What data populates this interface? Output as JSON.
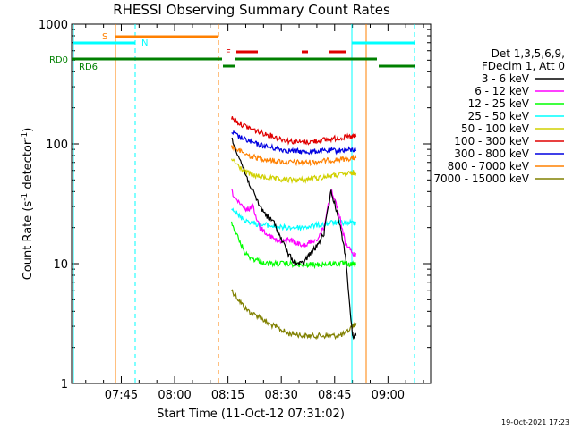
{
  "chart_data": {
    "type": "line",
    "title": "RHESSI Observing Summary Count Rates",
    "xlabel": "Start Time (11-Oct-12 07:31:02)",
    "ylabel": "Count Rate (s",
    "ylabel_sup1": "-1",
    "ylabel_mid": " detector",
    "ylabel_sup2": "-1",
    "ylabel_end": ")",
    "y_scale": "log",
    "ylim": [
      1,
      1000
    ],
    "xlim": [
      "07:31:02",
      "09:12:00"
    ],
    "x_ticks": [
      {
        "label": "07:45",
        "minute": 45
      },
      {
        "label": "08:00",
        "minute": 60
      },
      {
        "label": "08:15",
        "minute": 75
      },
      {
        "label": "08:30",
        "minute": 90
      },
      {
        "label": "08:45",
        "minute": 105
      },
      {
        "label": "09:00",
        "minute": 120
      }
    ],
    "y_ticks": [
      {
        "label": "1",
        "value": 1
      },
      {
        "label": "10",
        "value": 10
      },
      {
        "label": "100",
        "value": 100
      },
      {
        "label": "1000",
        "value": 1000
      }
    ],
    "legend_header": [
      "Det 1,3,5,6,9,",
      "FDecim 1, Att 0"
    ],
    "legend_placement": "right",
    "flags": [
      {
        "label": "S",
        "color": "#ff8000"
      },
      {
        "label": "N",
        "color": "#00ffff"
      },
      {
        "label": "F",
        "color": "#e00000"
      },
      {
        "label": "RD0",
        "color": "#008000"
      },
      {
        "label": "RD6",
        "color": "#008000"
      }
    ],
    "series": [
      {
        "name": "3 - 6 keV",
        "color": "#000000",
        "x": [
          76,
          78,
          80,
          82,
          84,
          86,
          88,
          90,
          92,
          94,
          96,
          98,
          100,
          102,
          104,
          106,
          108,
          110,
          111
        ],
        "values": [
          110,
          80,
          55,
          40,
          30,
          25,
          22,
          16,
          12,
          10,
          10,
          12,
          14,
          18,
          40,
          25,
          12,
          2.5,
          2.5
        ]
      },
      {
        "name": "6 - 12 keV",
        "color": "#ff00ff",
        "x": [
          76,
          78,
          80,
          82,
          84,
          86,
          88,
          90,
          92,
          94,
          96,
          98,
          100,
          102,
          104,
          106,
          108,
          110,
          111
        ],
        "values": [
          40,
          32,
          28,
          30,
          20,
          18,
          16,
          15,
          16,
          15,
          14,
          15,
          16,
          20,
          42,
          28,
          15,
          12,
          12
        ]
      },
      {
        "name": "12 - 25 keV",
        "color": "#00ff00",
        "x": [
          76,
          78,
          80,
          82,
          84,
          86,
          88,
          90,
          92,
          94,
          96,
          98,
          100,
          102,
          104,
          106,
          108,
          110,
          111
        ],
        "values": [
          22,
          16,
          12,
          11,
          10.5,
          10,
          10,
          10,
          10,
          9.8,
          9.7,
          9.8,
          9.8,
          9.9,
          10,
          10,
          10,
          9.8,
          9.8
        ]
      },
      {
        "name": "25 - 50 keV",
        "color": "#00ffff",
        "x": [
          76,
          78,
          80,
          82,
          84,
          86,
          88,
          90,
          92,
          94,
          96,
          98,
          100,
          102,
          104,
          106,
          108,
          110,
          111
        ],
        "values": [
          30,
          25,
          23,
          22,
          21,
          21,
          20.5,
          20,
          20,
          20,
          20,
          20.5,
          21,
          21,
          22,
          22,
          22,
          22,
          22
        ]
      },
      {
        "name": "50 - 100 keV",
        "color": "#d0d000",
        "x": [
          76,
          78,
          80,
          82,
          84,
          86,
          88,
          90,
          92,
          94,
          96,
          98,
          100,
          102,
          104,
          106,
          108,
          110,
          111
        ],
        "values": [
          75,
          65,
          58,
          55,
          53,
          52,
          51,
          50,
          50,
          50,
          50,
          51,
          52,
          53,
          54,
          55,
          56,
          57,
          57
        ]
      },
      {
        "name": "100 - 300 keV",
        "color": "#e00000",
        "x": [
          76,
          78,
          80,
          82,
          84,
          86,
          88,
          90,
          92,
          94,
          96,
          98,
          100,
          102,
          104,
          106,
          108,
          110,
          111
        ],
        "values": [
          165,
          150,
          140,
          132,
          125,
          120,
          115,
          110,
          106,
          104,
          103,
          104,
          106,
          108,
          110,
          112,
          113,
          115,
          115
        ]
      },
      {
        "name": "300 - 800 keV",
        "color": "#0000e0",
        "x": [
          76,
          78,
          80,
          82,
          84,
          86,
          88,
          90,
          92,
          94,
          96,
          98,
          100,
          102,
          104,
          106,
          108,
          110,
          111
        ],
        "values": [
          125,
          115,
          108,
          102,
          98,
          95,
          92,
          90,
          88,
          87,
          86,
          86,
          87,
          87,
          88,
          88,
          89,
          89,
          89
        ]
      },
      {
        "name": "800 - 7000 keV",
        "color": "#ff8000",
        "x": [
          76,
          78,
          80,
          82,
          84,
          86,
          88,
          90,
          92,
          94,
          96,
          98,
          100,
          102,
          104,
          106,
          108,
          110,
          111
        ],
        "values": [
          95,
          88,
          82,
          78,
          76,
          74,
          72,
          71,
          70,
          70,
          70,
          70,
          71,
          72,
          73,
          74,
          75,
          76,
          76
        ]
      },
      {
        "name": "7000 - 15000 keV",
        "color": "#808000",
        "x": [
          76,
          78,
          80,
          82,
          84,
          86,
          88,
          90,
          92,
          94,
          96,
          98,
          100,
          102,
          104,
          106,
          108,
          110,
          111
        ],
        "values": [
          6,
          5,
          4.2,
          3.8,
          3.6,
          3.2,
          3,
          2.8,
          2.6,
          2.6,
          2.5,
          2.5,
          2.5,
          2.5,
          2.5,
          2.5,
          2.6,
          3,
          3.2
        ]
      }
    ]
  },
  "footer_date": "19-Oct-2021 17:23"
}
